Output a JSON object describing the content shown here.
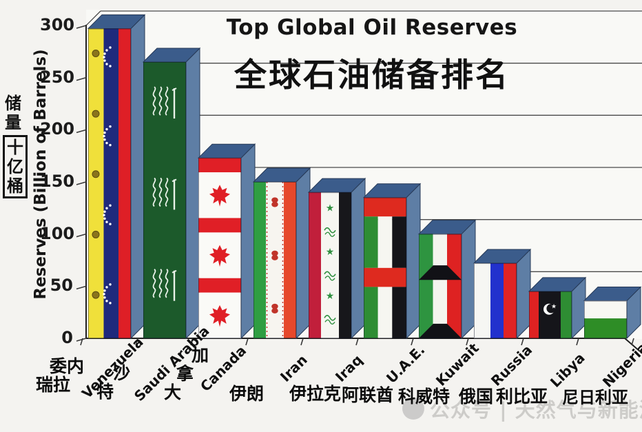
{
  "title": {
    "en": "Top Global Oil Reserves",
    "zh": "全球石油储备排名"
  },
  "y_axis": {
    "label_en": "Reserves (Billion of Barrels)",
    "label_zh": "储量",
    "label_zh_boxed": "十亿桶",
    "ticks": [
      0,
      50,
      100,
      150,
      200,
      250,
      300
    ]
  },
  "watermark": {
    "text": "公众号 | 天然气与新能源"
  },
  "chart_data": {
    "type": "bar",
    "title": "Top Global Oil Reserves 全球石油储备排名",
    "xlabel": "",
    "ylabel": "Reserves (Billion of Barrels) 储量(十亿桶)",
    "unit": "billion barrels",
    "ylim": [
      0,
      300
    ],
    "grid": true,
    "legend": false,
    "style": "3D bars textured with each country's national flag",
    "categories": [
      "Venezuela",
      "Saudi Arabia",
      "Canada",
      "Iran",
      "Iraq",
      "U.A.E.",
      "Kuwait",
      "Russia",
      "Libya",
      "Nigeria"
    ],
    "categories_zh": [
      "委内瑞拉",
      "沙特",
      "加拿大",
      "伊朗",
      "伊拉克",
      "阿联酋",
      "科威特",
      "俄国",
      "利比亚",
      "尼日利亚"
    ],
    "values": [
      297,
      265,
      173,
      150,
      140,
      135,
      100,
      72,
      45,
      36
    ]
  },
  "flags": [
    {
      "country": "Venezuela",
      "pattern": "venezuela",
      "colors": {
        "yellow": "#f0e03a",
        "blue": "#1f2a7c",
        "red": "#de1f26",
        "star": "#ffffff",
        "blob": "#8a741c"
      }
    },
    {
      "country": "Saudi Arabia",
      "pattern": "saudi",
      "colors": {
        "green": "#1c5a2b",
        "script": "#e9f2e9"
      }
    },
    {
      "country": "Canada",
      "pattern": "canada",
      "colors": {
        "red": "#e01f26",
        "white": "#fafaf7"
      }
    },
    {
      "country": "Iran",
      "pattern": "iran",
      "colors": {
        "green": "#2f9e42",
        "white": "#f7f5f0",
        "red": "#e6482b",
        "emblem": "#c0342a"
      }
    },
    {
      "country": "Iraq",
      "pattern": "iraq",
      "colors": {
        "red": "#c11f3b",
        "white": "#f6f6f1",
        "black": "#17171b",
        "star": "#2f8f3f"
      }
    },
    {
      "country": "U.A.E.",
      "pattern": "uae",
      "colors": {
        "red": "#de2a1f",
        "green": "#2e8d33",
        "white": "#f6f6f1",
        "black": "#141419"
      }
    },
    {
      "country": "Kuwait",
      "pattern": "kuwait",
      "colors": {
        "green": "#2e9440",
        "white": "#f4f4ef",
        "red": "#de2222",
        "black": "#111116"
      }
    },
    {
      "country": "Russia",
      "pattern": "russia",
      "colors": {
        "white": "#f6f6f3",
        "blue": "#2231cd",
        "red": "#e02424"
      }
    },
    {
      "country": "Libya",
      "pattern": "libya",
      "colors": {
        "red": "#de2222",
        "black": "#15151a",
        "green": "#2e8d33",
        "mark": "#ffffff"
      }
    },
    {
      "country": "Nigeria",
      "pattern": "nigeria",
      "colors": {
        "white": "#f8f8f3",
        "green": "#2e8d26"
      }
    }
  ],
  "colors": {
    "bar_top": "#3b5c8b",
    "bar_side": "#5e7ea5",
    "bar_edge": "#263956",
    "grid": "#4a4a4a",
    "axis": "#1f1f1f",
    "watermark": "#c7c6c3"
  }
}
